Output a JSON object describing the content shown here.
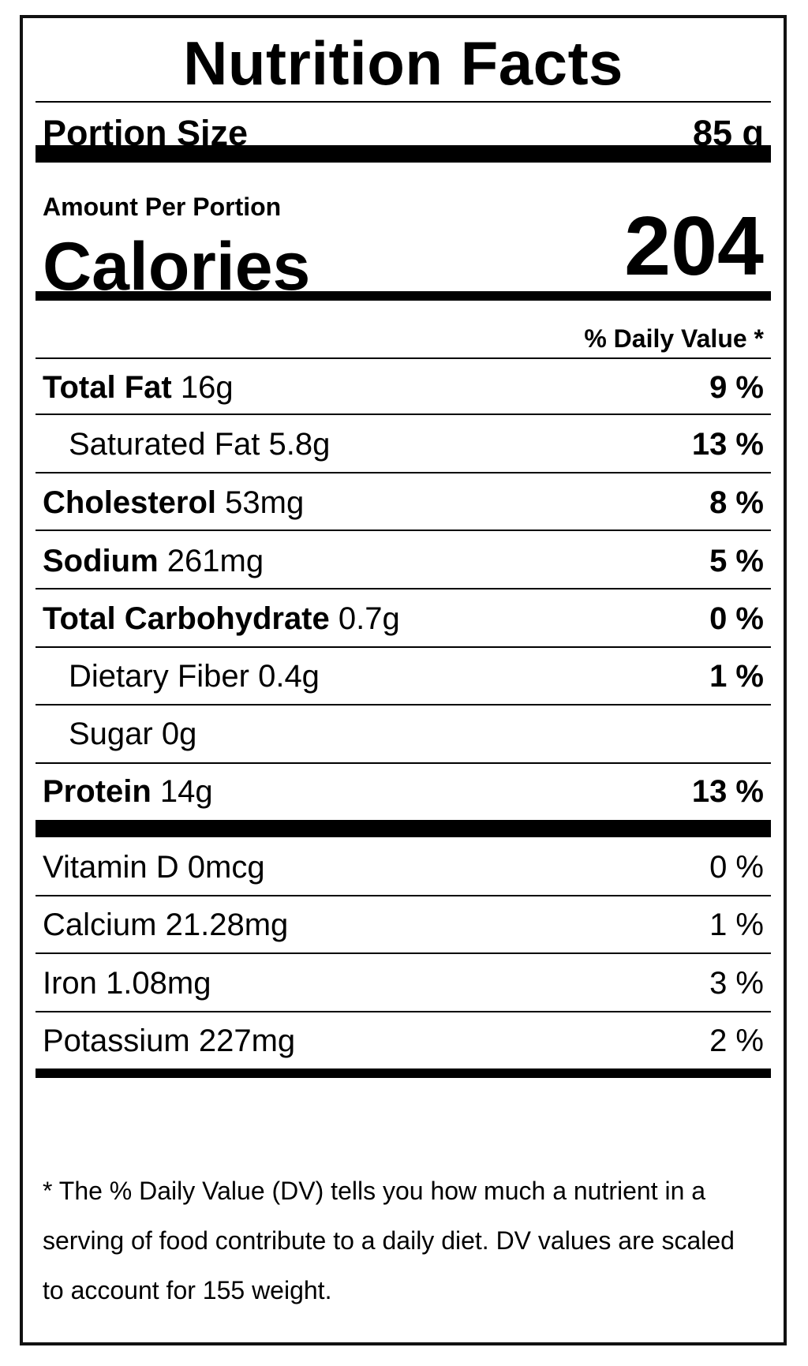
{
  "title": "Nutrition Facts",
  "portion": {
    "label": "Portion Size",
    "value": "85 g"
  },
  "amount_per": "Amount Per Portion",
  "calories": {
    "label": "Calories",
    "value": "204"
  },
  "dv_header": "% Daily Value *",
  "nutrients": [
    {
      "name": "Total Fat",
      "amount": "16g",
      "dv": "9 %"
    },
    {
      "name": "Saturated Fat",
      "amount": "5.8g",
      "dv": "13 %"
    },
    {
      "name": "Cholesterol",
      "amount": "53mg",
      "dv": "8 %"
    },
    {
      "name": "Sodium",
      "amount": "261mg",
      "dv": "5 %"
    },
    {
      "name": "Total Carbohydrate",
      "amount": "0.7g",
      "dv": "0 %"
    },
    {
      "name": "Dietary Fiber",
      "amount": "0.4g",
      "dv": "1 %"
    },
    {
      "name": "Sugar",
      "amount": "0g",
      "dv": ""
    },
    {
      "name": "Protein",
      "amount": "14g",
      "dv": "13 %"
    }
  ],
  "micronutrients": [
    {
      "name": "Vitamin D",
      "amount": "0mcg",
      "dv": "0 %"
    },
    {
      "name": "Calcium",
      "amount": "21.28mg",
      "dv": "1 %"
    },
    {
      "name": "Iron",
      "amount": "1.08mg",
      "dv": "3 %"
    },
    {
      "name": "Potassium",
      "amount": "227mg",
      "dv": "2 %"
    }
  ],
  "footnote": "* The % Daily Value (DV) tells you how much a nutrient in a serving of food contribute to a daily diet. DV values are scaled to account for 155 weight."
}
